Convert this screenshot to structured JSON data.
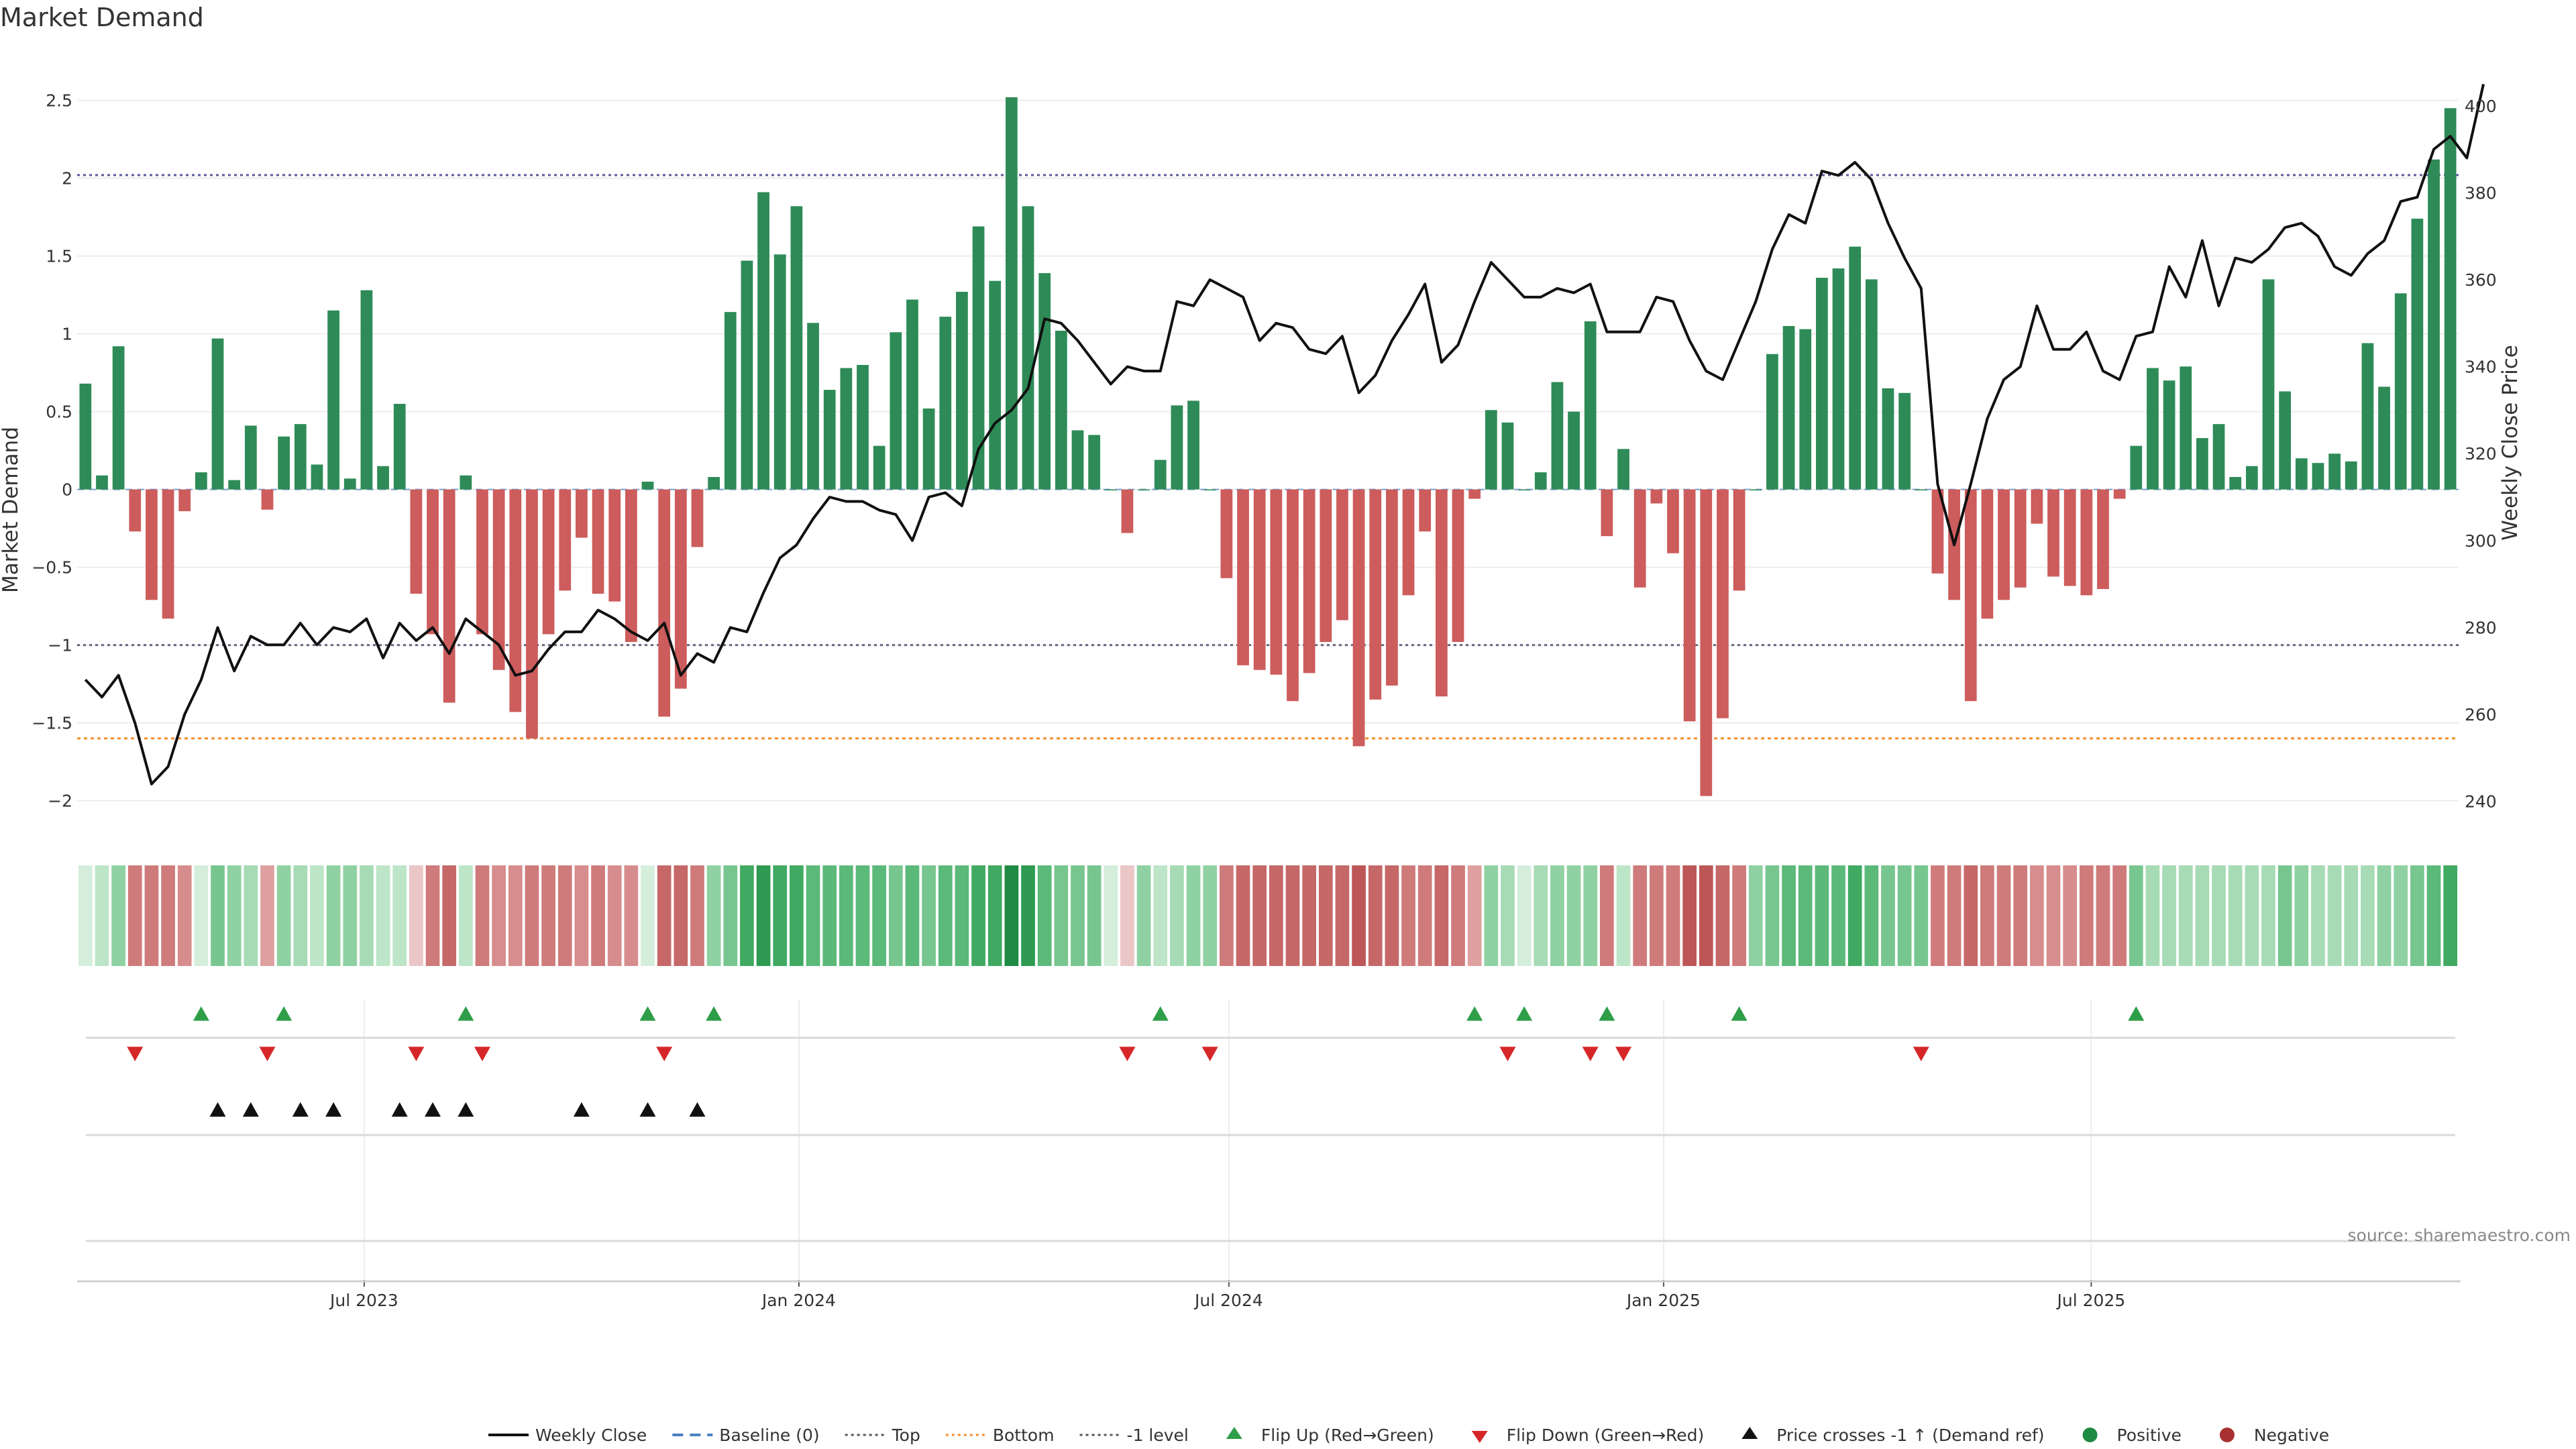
{
  "chart_data": {
    "type": "bar",
    "title": "Market Demand",
    "ylabel": "Market Demand",
    "y2label": "Weekly Close Price",
    "ylim": [
      -2.2,
      2.8
    ],
    "y2lim": [
      233,
      412
    ],
    "yticks": [
      2.5,
      2,
      1.5,
      1,
      0.5,
      0,
      -0.5,
      -1,
      -1.5,
      -2
    ],
    "yticklabels": [
      "2.5",
      "2",
      "1.5",
      "1",
      "0.5",
      "0",
      "−0.5",
      "−1",
      "−1.5",
      "−2"
    ],
    "y2ticks": [
      400,
      380,
      360,
      340,
      320,
      300,
      280,
      260,
      240
    ],
    "y2ticklabels": [
      "400",
      "380",
      "360",
      "340",
      "320",
      "300",
      "280",
      "260",
      "240"
    ],
    "date_start": "2023-03-05",
    "xticks": [
      {
        "date": "2023-07-01",
        "label": "Jul 2023"
      },
      {
        "date": "2024-01-01",
        "label": "Jan 2024"
      },
      {
        "date": "2024-07-01",
        "label": "Jul 2024"
      },
      {
        "date": "2025-01-01",
        "label": "Jan 2025"
      },
      {
        "date": "2025-07-01",
        "label": "Jul 2025"
      }
    ],
    "reference_lines": {
      "top": 2.02,
      "bottom": -1.6,
      "minus_one": -1.0,
      "baseline": 0
    },
    "demand": [
      0.68,
      0.09,
      0.92,
      -0.27,
      -0.71,
      -0.83,
      -0.14,
      0.11,
      0.97,
      0.06,
      0.41,
      -0.13,
      0.34,
      0.42,
      0.16,
      1.15,
      0.07,
      1.28,
      0.15,
      0.55,
      -0.67,
      -0.93,
      -1.37,
      0.09,
      -0.93,
      -1.16,
      -1.43,
      -1.6,
      -0.93,
      -0.65,
      -0.31,
      -0.67,
      -0.72,
      -0.98,
      0.05,
      -1.46,
      -1.28,
      -0.37,
      0.08,
      1.14,
      1.47,
      1.91,
      1.51,
      1.82,
      1.07,
      0.64,
      0.78,
      0.8,
      0.28,
      1.01,
      1.22,
      0.52,
      1.11,
      1.27,
      1.69,
      1.34,
      2.52,
      1.82,
      1.39,
      1.02,
      0.38,
      0.35,
      0.0,
      -0.28,
      0.0,
      0.19,
      0.54,
      0.57,
      0.0,
      -0.57,
      -1.13,
      -1.16,
      -1.19,
      -1.36,
      -1.18,
      -0.98,
      -0.84,
      -1.65,
      -1.35,
      -1.26,
      -0.68,
      -0.27,
      -1.33,
      -0.98,
      -0.06,
      0.51,
      0.43,
      0.0,
      0.11,
      0.69,
      0.5,
      1.08,
      -0.3,
      0.26,
      -0.63,
      -0.09,
      -0.41,
      -1.49,
      -1.97,
      -1.47,
      -0.65,
      0.0,
      0.87,
      1.05,
      1.03,
      1.36,
      1.42,
      1.56,
      1.35,
      0.65,
      0.62,
      0.0,
      -0.54,
      -0.71,
      -1.36,
      -0.83,
      -0.71,
      -0.63,
      -0.22,
      -0.56,
      -0.62,
      -0.68,
      -0.64,
      -0.06,
      0.28,
      0.78,
      0.7,
      0.79,
      0.33,
      0.42,
      0.08,
      0.15,
      1.35,
      0.63,
      0.2,
      0.17,
      0.23,
      0.18,
      0.94,
      0.66,
      1.26,
      1.74,
      2.12,
      2.45
    ],
    "weekly_close": [
      268,
      264,
      269,
      258,
      244,
      248,
      260,
      268,
      280,
      270,
      278,
      276,
      276,
      281,
      276,
      280,
      279,
      282,
      273,
      281,
      277,
      280,
      274,
      282,
      279,
      276,
      269,
      270,
      275,
      279,
      279,
      284,
      282,
      279,
      277,
      281,
      269,
      274,
      272,
      280,
      279,
      288,
      296,
      299,
      305,
      310,
      309,
      309,
      307,
      306,
      300,
      310,
      311,
      308,
      321,
      327,
      330,
      335,
      351,
      350,
      346,
      341,
      336,
      340,
      339,
      339,
      355,
      354,
      360,
      358,
      356,
      346,
      350,
      349,
      344,
      343,
      347,
      334,
      338,
      346,
      352,
      359,
      341,
      345,
      355,
      364,
      360,
      356,
      356,
      358,
      357,
      359,
      348,
      348,
      348,
      356,
      355,
      346,
      339,
      337,
      346,
      355,
      367,
      375,
      373,
      385,
      384,
      387,
      383,
      373,
      365,
      358,
      313,
      299,
      313,
      328,
      337,
      340,
      354,
      344,
      344,
      348,
      339,
      337,
      347,
      348,
      363,
      356,
      369,
      354,
      365,
      364,
      367,
      372,
      373,
      370,
      363,
      361,
      366,
      369,
      378,
      379,
      390,
      393,
      388,
      405
    ],
    "heat_levels": [
      1,
      2,
      4,
      6,
      6,
      6,
      5,
      1,
      5,
      4,
      3,
      4,
      4,
      3,
      2,
      4,
      4,
      3,
      2,
      2,
      2,
      6,
      7,
      2,
      6,
      5,
      5,
      6,
      6,
      6,
      5,
      6,
      5,
      5,
      1,
      7,
      7,
      6,
      4,
      5,
      7,
      8,
      7,
      7,
      6,
      6,
      6,
      6,
      6,
      5,
      6,
      5,
      6,
      6,
      7,
      7,
      9,
      8,
      6,
      5,
      5,
      5,
      1,
      2,
      4,
      2,
      3,
      4,
      4,
      6,
      7,
      7,
      7,
      7,
      7,
      7,
      7,
      8,
      7,
      7,
      6,
      6,
      7,
      6,
      4,
      4,
      3,
      1,
      3,
      4,
      4,
      4,
      6,
      2,
      6,
      6,
      6,
      8,
      8,
      7,
      6,
      4,
      5,
      6,
      6,
      6,
      6,
      7,
      6,
      5,
      5,
      5,
      6,
      6,
      7,
      6,
      6,
      6,
      5,
      5,
      5,
      6,
      6,
      6,
      5,
      3,
      3,
      3,
      3,
      3,
      3,
      3,
      3,
      5,
      4,
      3,
      3,
      3,
      3,
      4,
      4,
      5,
      6,
      7,
      8
    ],
    "heat_colors": {
      "pos": [
        "#d4eedb",
        "#bde5c8",
        "#a6dbb5",
        "#8fd1a2",
        "#78c68f",
        "#5bb979",
        "#40aa62",
        "#2e9a52",
        "#1f8a44"
      ],
      "neg": [
        "#f0d7d7",
        "#ebc6c6",
        "#e5b3b3",
        "#dfa0a0",
        "#d78d8d",
        "#cf7b7b",
        "#c66868",
        "#bd5757",
        "#b34848"
      ]
    },
    "bar_colors": {
      "positive": "#2e8b57",
      "negative": "#cd5c5c"
    },
    "line_color": "#111111",
    "flip_up_idx": [
      7,
      12,
      23,
      34,
      38,
      65,
      84,
      87,
      92,
      100,
      124
    ],
    "flip_down_idx": [
      3,
      11,
      20,
      24,
      35,
      63,
      68,
      86,
      91,
      93,
      111
    ],
    "cross_idx": [
      8,
      10,
      13,
      15,
      19,
      21,
      23,
      30,
      34,
      37
    ],
    "flip_up_color": "#2e9e48",
    "flip_down_color": "#d62728",
    "legend": [
      {
        "label": "Weekly Close",
        "kind": "line",
        "color": "#111111"
      },
      {
        "label": "Baseline (0)",
        "kind": "dash",
        "color": "#4a7fc1"
      },
      {
        "label": "Top",
        "kind": "dot",
        "color": "#555555"
      },
      {
        "label": "Bottom",
        "kind": "dot",
        "color": "#f28e2b"
      },
      {
        "label": "-1 level",
        "kind": "dot",
        "color": "#555555"
      },
      {
        "label": "Flip Up (Red→Green)",
        "kind": "up",
        "color": "#2e9e48"
      },
      {
        "label": "Flip Down (Green→Red)",
        "kind": "down",
        "color": "#d62728"
      },
      {
        "label": "Price crosses -1 ↑ (Demand ref)",
        "kind": "up",
        "color": "#111111"
      },
      {
        "label": "Positive",
        "kind": "circle",
        "color": "#1f8a44"
      },
      {
        "label": "Negative",
        "kind": "circle",
        "color": "#a83232"
      }
    ],
    "source": "source: sharemaestro.com"
  }
}
